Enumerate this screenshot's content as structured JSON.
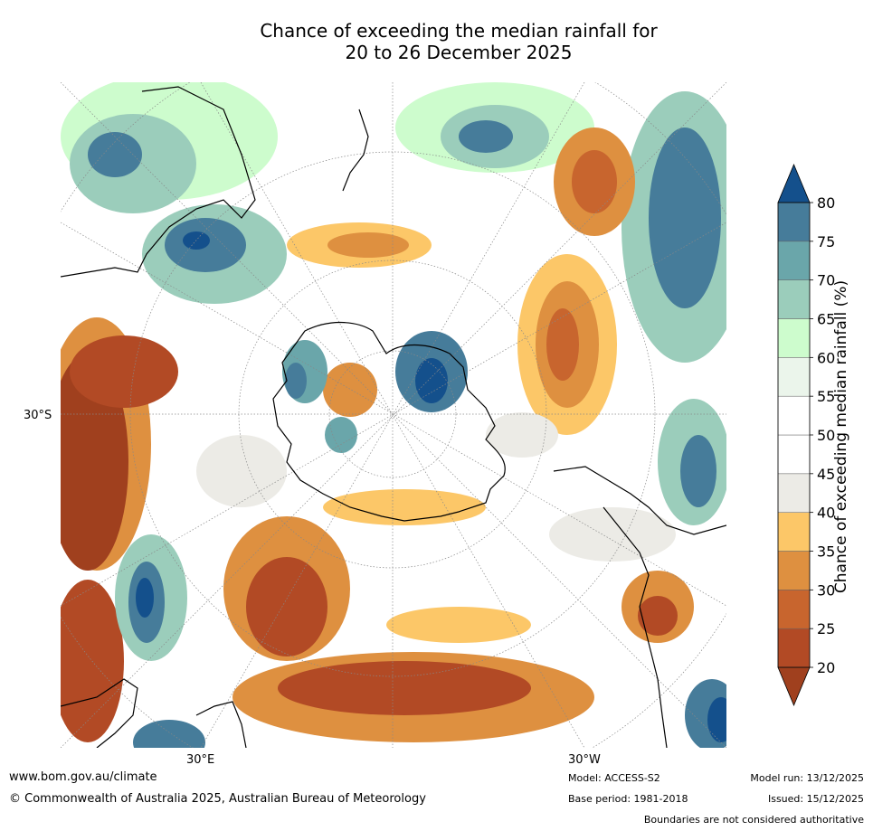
{
  "title_line1": "Chance of exceeding the median rainfall for",
  "title_line2": "20 to 26 December 2025",
  "map": {
    "projection": "south-polar stereographic",
    "lat_label": "30°S",
    "lon_labels": [
      "30°E",
      "30°W"
    ]
  },
  "colorbar": {
    "label": "Chance of exceeding median rainfall (%)",
    "ticks": [
      "20",
      "25",
      "30",
      "35",
      "40",
      "45",
      "50",
      "55",
      "60",
      "65",
      "70",
      "75",
      "80"
    ],
    "colors": [
      "#a0401e",
      "#b24a25",
      "#c8652e",
      "#de9040",
      "#fcc768",
      "#ecebe6",
      "#ffffff",
      "#ffffff",
      "#ebf5eb",
      "#cdfccd",
      "#9bcdbb",
      "#6aa6aa",
      "#467c9a",
      "#14508c"
    ]
  },
  "footer": {
    "website": "www.bom.gov.au/climate",
    "copyright": "© Commonwealth of Australia 2025, Australian Bureau of Meteorology",
    "model": "Model: ACCESS-S2",
    "base_period": "Base period: 1981-2018",
    "model_run": "Model run: 13/12/2025",
    "issued": "Issued: 15/12/2025",
    "disclaimer": "Boundaries are not considered authoritative"
  }
}
